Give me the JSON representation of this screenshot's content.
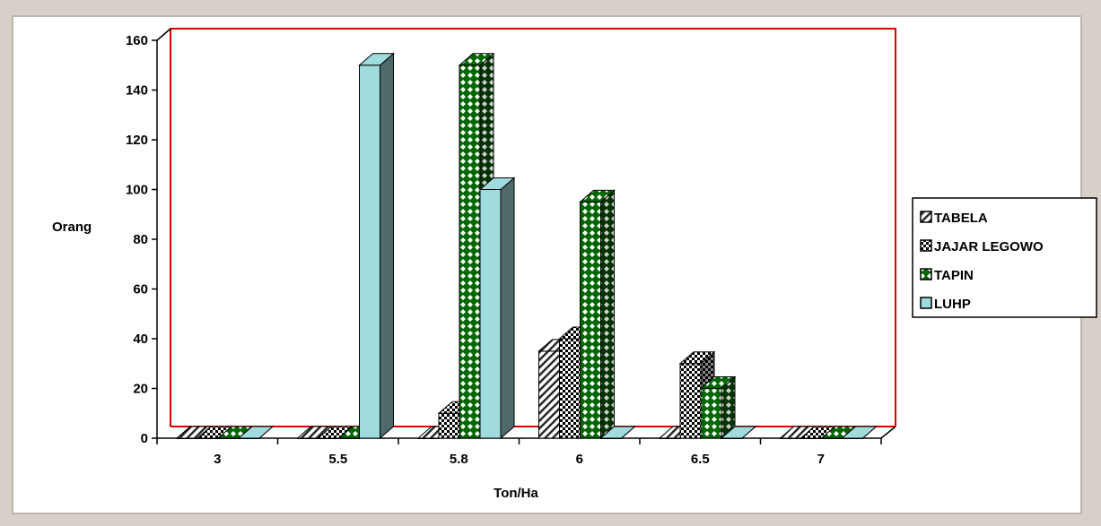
{
  "chart_data": {
    "type": "bar",
    "xlabel": "Ton/Ha",
    "ylabel": "Orang",
    "ylim": [
      0,
      160
    ],
    "yticks": [
      0,
      20,
      40,
      60,
      80,
      100,
      120,
      140,
      160
    ],
    "categories": [
      "3",
      "5.5",
      "5.8",
      "6",
      "6.5",
      "7"
    ],
    "series": [
      {
        "name": "TABELA",
        "values": [
          0,
          0,
          0,
          35,
          0,
          0
        ],
        "color": "#ffffff",
        "pattern": "diagonal-hatch"
      },
      {
        "name": "JAJAR LEGOWO",
        "values": [
          0,
          0,
          10,
          40,
          30,
          0
        ],
        "color": "#000000",
        "pattern": "checker"
      },
      {
        "name": "TAPIN",
        "values": [
          0,
          0,
          150,
          95,
          20,
          0
        ],
        "color": "#006600",
        "pattern": "diamond-dots"
      },
      {
        "name": "LUHP",
        "values": [
          0,
          150,
          100,
          0,
          0,
          0
        ],
        "color": "#a0dcde",
        "pattern": "solid"
      }
    ],
    "grid": false,
    "legend_position": "right",
    "wall_border_color": "#e00000"
  }
}
